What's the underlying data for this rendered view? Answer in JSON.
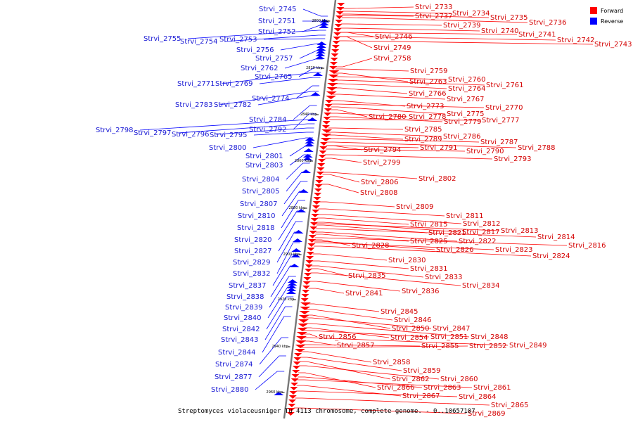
{
  "caption": "Streptomyces violaceusniger Tu 4113 chromosome, complete genome. - 0..10657107",
  "legend": [
    {
      "label": "Forward",
      "color": "#ff0000"
    },
    {
      "label": "Reverse",
      "color": "#0000ff"
    }
  ],
  "ticks": [
    "2800 kbp",
    "2820 kbp",
    "2840 kbp",
    "2860 kbp",
    "2880 kbp",
    "2900 kbp",
    "2920 kbp",
    "2940 kbp",
    "2960 kbp"
  ],
  "forward_genes": [
    "Strvi_2733",
    "Strvi_2737",
    "Strvi_2734",
    "Strvi_2735",
    "Strvi_2736",
    "Strvi_2739",
    "Strvi_2740",
    "Strvi_2741",
    "Strvi_2742",
    "Strvi_2743",
    "Strvi_2746",
    "Strvi_2749",
    "Strvi_2758",
    "Strvi_2759",
    "Strvi_2763",
    "Strvi_2760",
    "Strvi_2761",
    "Strvi_2764",
    "Strvi_2766",
    "Strvi_2767",
    "Strvi_2773",
    "Strvi_2770",
    "Strvi_2775",
    "Strvi_2780",
    "Strvi_2778",
    "Strvi_2779",
    "Strvi_2777",
    "Strvi_2785",
    "Strvi_2786",
    "Strvi_2789",
    "Strvi_2787",
    "Strvi_2788",
    "Strvi_2794",
    "Strvi_2791",
    "Strvi_2790",
    "Strvi_2793",
    "Strvi_2799",
    "Strvi_2802",
    "Strvi_2806",
    "Strvi_2808",
    "Strvi_2809",
    "Strvi_2811",
    "Strvi_2812",
    "Strvi_2815",
    "Strvi_2817",
    "Strvi_2813",
    "Strvi_2821",
    "Strvi_2814",
    "Strvi_2822",
    "Strvi_2825",
    "Strvi_2816",
    "Strvi_2828",
    "Strvi_2826",
    "Strvi_2823",
    "Strvi_2824",
    "Strvi_2830",
    "Strvi_2831",
    "Strvi_2833",
    "Strvi_2835",
    "Strvi_2834",
    "Strvi_2836",
    "Strvi_2841",
    "Strvi_2845",
    "Strvi_2846",
    "Strvi_2850",
    "Strvi_2847",
    "Strvi_2848",
    "Strvi_2854",
    "Strvi_2851",
    "Strvi_2856",
    "Strvi_2849",
    "Strvi_2857",
    "Strvi_2855",
    "Strvi_2852",
    "Strvi_2858",
    "Strvi_2859",
    "Strvi_2862",
    "Strvi_2860",
    "Strvi_2866",
    "Strvi_2863",
    "Strvi_2861",
    "Strvi_2867",
    "Strvi_2864",
    "Strvi_2865",
    "Strvi_2869"
  ],
  "reverse_genes": [
    "Strvi_2745",
    "Strvi_2751",
    "Strvi_2752",
    "Strvi_2755",
    "Strvi_2754",
    "Strvi_2753",
    "Strvi_2756",
    "Strvi_2757",
    "Strvi_2762",
    "Strvi_2765",
    "Strvi_2771",
    "Strvi_2769",
    "Strvi_2774",
    "Strvi_2783",
    "Strvi_2782",
    "Strvi_2784",
    "Strvi_2792",
    "Strvi_2798",
    "Strvi_2797",
    "Strvi_2796",
    "Strvi_2795",
    "Strvi_2800",
    "Strvi_2801",
    "Strvi_2803",
    "Strvi_2804",
    "Strvi_2805",
    "Strvi_2807",
    "Strvi_2810",
    "Strvi_2818",
    "Strvi_2820",
    "Strvi_2827",
    "Strvi_2829",
    "Strvi_2832",
    "Strvi_2837",
    "Strvi_2838",
    "Strvi_2839",
    "Strvi_2840",
    "Strvi_2842",
    "Strvi_2843",
    "Strvi_2844",
    "Strvi_2874",
    "Strvi_2877",
    "Strvi_2880"
  ]
}
